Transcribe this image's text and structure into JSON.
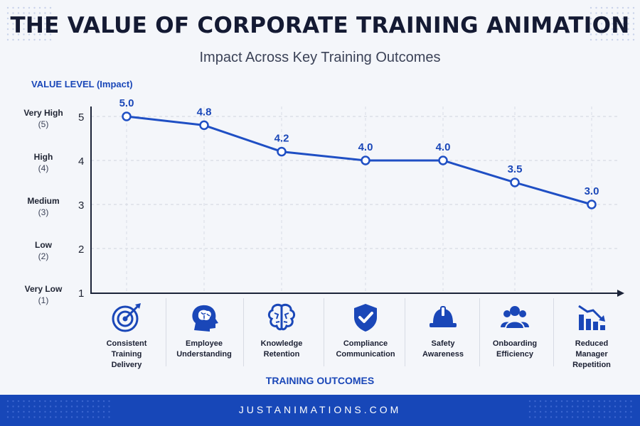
{
  "title": "THE VALUE OF CORPORATE TRAINING ANIMATION",
  "subtitle": "Impact Across Key Training Outcomes",
  "footer": "JUSTANIMATIONS.COM",
  "colors": {
    "accent": "#1a47b8",
    "line": "#1f4fc4",
    "footer": "#1747b8",
    "background": "#f4f6fa"
  },
  "chart_data": {
    "type": "line",
    "ylabel": "VALUE LEVEL (Impact)",
    "xlabel": "TRAINING OUTCOMES",
    "ylim": [
      1,
      5
    ],
    "yticks": [
      {
        "value": 5,
        "name": "Very High",
        "sub": "(5)"
      },
      {
        "value": 4,
        "name": "High",
        "sub": "(4)"
      },
      {
        "value": 3,
        "name": "Medium",
        "sub": "(3)"
      },
      {
        "value": 2,
        "name": "Low",
        "sub": "(2)"
      },
      {
        "value": 1,
        "name": "Very Low",
        "sub": "(1)"
      }
    ],
    "categories": [
      "Consistent Training Delivery",
      "Employee Understanding",
      "Knowledge Retention",
      "Compliance Communication",
      "Safety Awareness",
      "Onboarding Efficiency",
      "Reduced Manager Repetition"
    ],
    "values": [
      5.0,
      4.8,
      4.2,
      4.0,
      4.0,
      3.5,
      3.0
    ],
    "value_labels": [
      "5.0",
      "4.8",
      "4.2",
      "4.0",
      "4.0",
      "3.5",
      "3.0"
    ],
    "grid": true
  },
  "outcomes": [
    {
      "lines": [
        "Consistent",
        "Training",
        "Delivery"
      ],
      "icon": "target-icon"
    },
    {
      "lines": [
        "Employee",
        "Understanding"
      ],
      "icon": "head-brain-icon"
    },
    {
      "lines": [
        "Knowledge",
        "Retention"
      ],
      "icon": "brain-icon"
    },
    {
      "lines": [
        "Compliance",
        "Communication"
      ],
      "icon": "shield-check-icon"
    },
    {
      "lines": [
        "Safety",
        "Awareness"
      ],
      "icon": "hard-hat-icon"
    },
    {
      "lines": [
        "Onboarding",
        "Efficiency"
      ],
      "icon": "team-icon"
    },
    {
      "lines": [
        "Reduced",
        "Manager",
        "Repetition"
      ],
      "icon": "declining-chart-icon"
    }
  ]
}
